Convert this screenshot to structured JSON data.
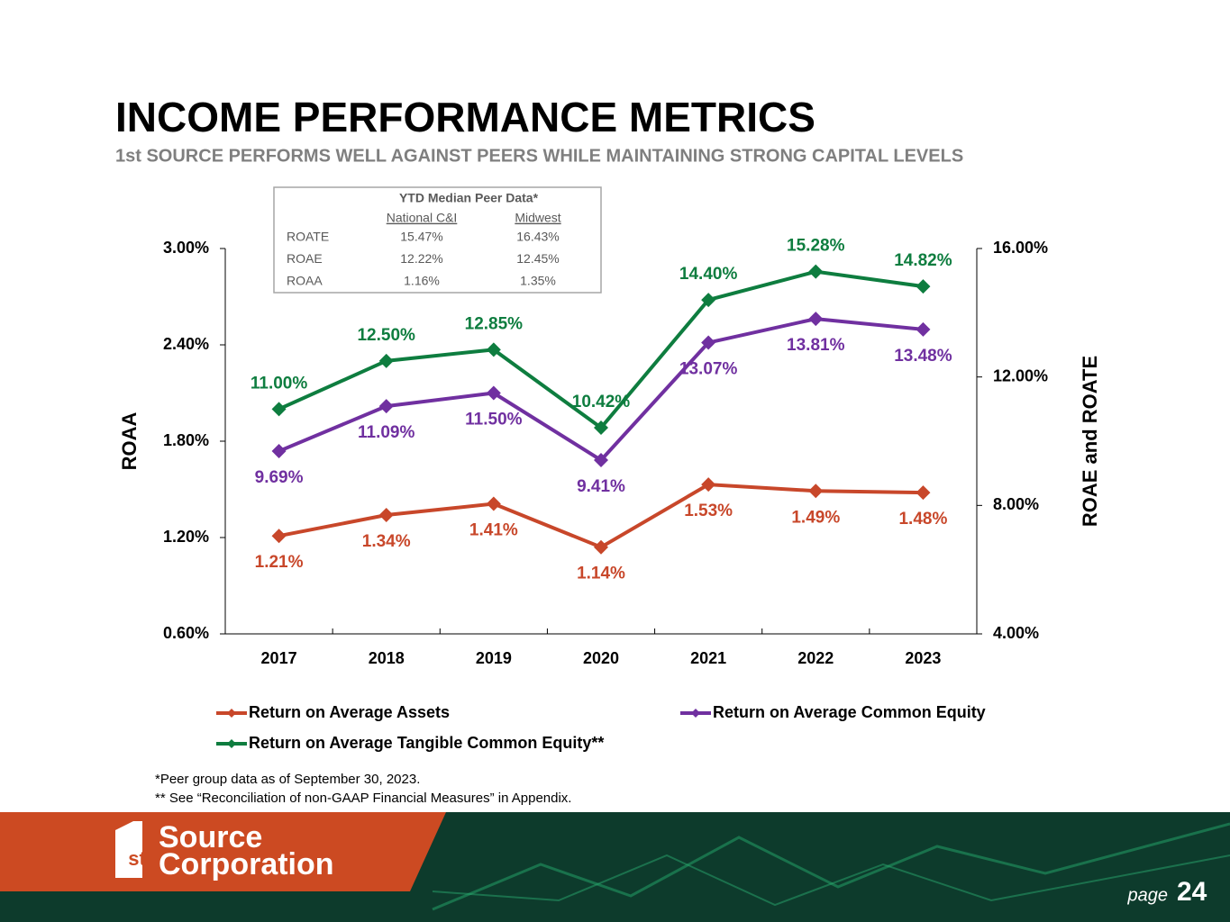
{
  "slide": {
    "title": "INCOME PERFORMANCE METRICS",
    "subtitle": "1st SOURCE PERFORMS WELL AGAINST PEERS WHILE MAINTAINING STRONG CAPITAL LEVELS",
    "footnotes": [
      "*Peer group data as of September 30, 2023.",
      "** See “Reconciliation of non-GAAP Financial Measures” in Appendix."
    ],
    "brand": [
      "Source",
      "Corporation"
    ],
    "brand_mark": "st",
    "page_label": "page",
    "page_number": "24"
  },
  "peer_table": {
    "title": "YTD Median Peer Data*",
    "columns": [
      "National C&I",
      "Midwest"
    ],
    "rows": [
      [
        "ROATE",
        "15.47%",
        "16.43%"
      ],
      [
        "ROAE",
        "12.22%",
        "12.45%"
      ],
      [
        "ROAA",
        "1.16%",
        "1.35%"
      ]
    ]
  },
  "chart_data": {
    "type": "line",
    "categories": [
      "2017",
      "2018",
      "2019",
      "2020",
      "2021",
      "2022",
      "2023"
    ],
    "ylabel": "ROAA",
    "y2label": "ROAE and ROATE",
    "ylim": [
      0.6,
      3.0
    ],
    "yticks": [
      {
        "value": 0.6,
        "label": "0.60%"
      },
      {
        "value": 1.2,
        "label": "1.20%"
      },
      {
        "value": 1.8,
        "label": "1.80%"
      },
      {
        "value": 2.4,
        "label": "2.40%"
      },
      {
        "value": 3.0,
        "label": "3.00%"
      }
    ],
    "y2lim": [
      4,
      16
    ],
    "y2ticks": [
      {
        "value": 4,
        "label": "4.00%"
      },
      {
        "value": 8,
        "label": "8.00%"
      },
      {
        "value": 12,
        "label": "12.00%"
      },
      {
        "value": 16,
        "label": "16.00%"
      }
    ],
    "series": [
      {
        "name": "Return on Average Assets",
        "color": "#c8472a",
        "axis": "y",
        "values": [
          1.21,
          1.34,
          1.41,
          1.14,
          1.53,
          1.49,
          1.48
        ],
        "value_labels": [
          "1.21%",
          "1.34%",
          "1.41%",
          "1.14%",
          "1.53%",
          "1.49%",
          "1.48%"
        ]
      },
      {
        "name": "Return on Average Common Equity",
        "color": "#7030a0",
        "axis": "y2",
        "values": [
          9.69,
          11.09,
          11.5,
          9.41,
          13.07,
          13.81,
          13.48
        ],
        "value_labels": [
          "9.69%",
          "11.09%",
          "11.50%",
          "9.41%",
          "13.07%",
          "13.81%",
          "13.48%"
        ]
      },
      {
        "name": "Return on Average Tangible Common Equity**",
        "color": "#0e7d3f",
        "axis": "y2",
        "values": [
          11.0,
          12.5,
          12.85,
          10.42,
          14.4,
          15.28,
          14.82
        ],
        "value_labels": [
          "11.00%",
          "12.50%",
          "12.85%",
          "10.42%",
          "14.40%",
          "15.28%",
          "14.82%"
        ]
      }
    ]
  }
}
